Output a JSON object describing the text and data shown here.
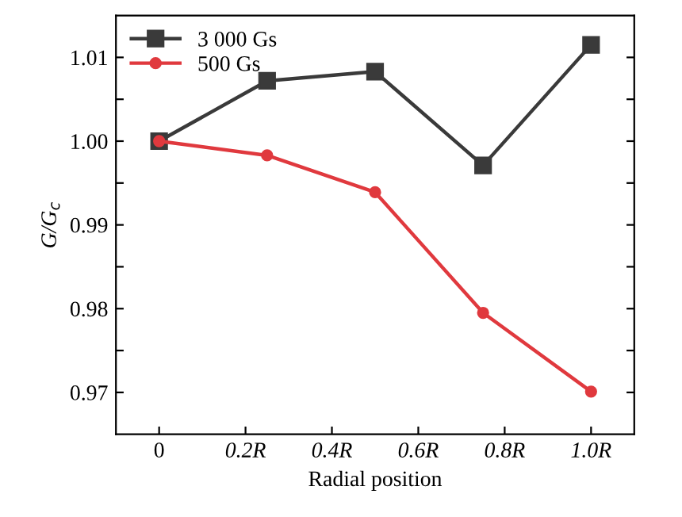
{
  "chart_data": {
    "type": "line",
    "xlabel": "Radial position",
    "ylabel": "G/G$_{c}$",
    "x": [
      0,
      0.25,
      0.5,
      0.75,
      1.0
    ],
    "series": [
      {
        "name": "3 000 Gs",
        "color": "#3a3a3a",
        "marker": "square",
        "values": [
          1.0,
          1.0072,
          1.0083,
          0.9971,
          1.0115
        ]
      },
      {
        "name": "500 Gs",
        "color": "#e0393e",
        "marker": "circle",
        "values": [
          1.0,
          0.9983,
          0.9939,
          0.9795,
          0.9701
        ]
      }
    ],
    "xlim": [
      -0.1,
      1.1
    ],
    "xticks": [
      0,
      {
        "value": 0.2,
        "label": "0.2R"
      },
      {
        "value": 0.4,
        "label": "0.4R"
      },
      {
        "value": 0.6,
        "label": "0.6R"
      },
      {
        "value": 0.8,
        "label": "0.8R"
      },
      {
        "value": 1.0,
        "label": "1.0R"
      }
    ],
    "ylim": [
      0.965,
      1.015
    ],
    "yticks": [
      {
        "value": 0.97,
        "label": "0.97"
      },
      {
        "value": 0.975,
        "label": null
      },
      {
        "value": 0.98,
        "label": "0.98"
      },
      {
        "value": 0.985,
        "label": null
      },
      {
        "value": 0.99,
        "label": "0.99"
      },
      {
        "value": 0.995,
        "label": null
      },
      {
        "value": 1.0,
        "label": "1.00"
      },
      {
        "value": 1.005,
        "label": null
      },
      {
        "value": 1.01,
        "label": "1.01"
      }
    ],
    "grid": false,
    "legend": "top left",
    "line_style": "solid"
  }
}
